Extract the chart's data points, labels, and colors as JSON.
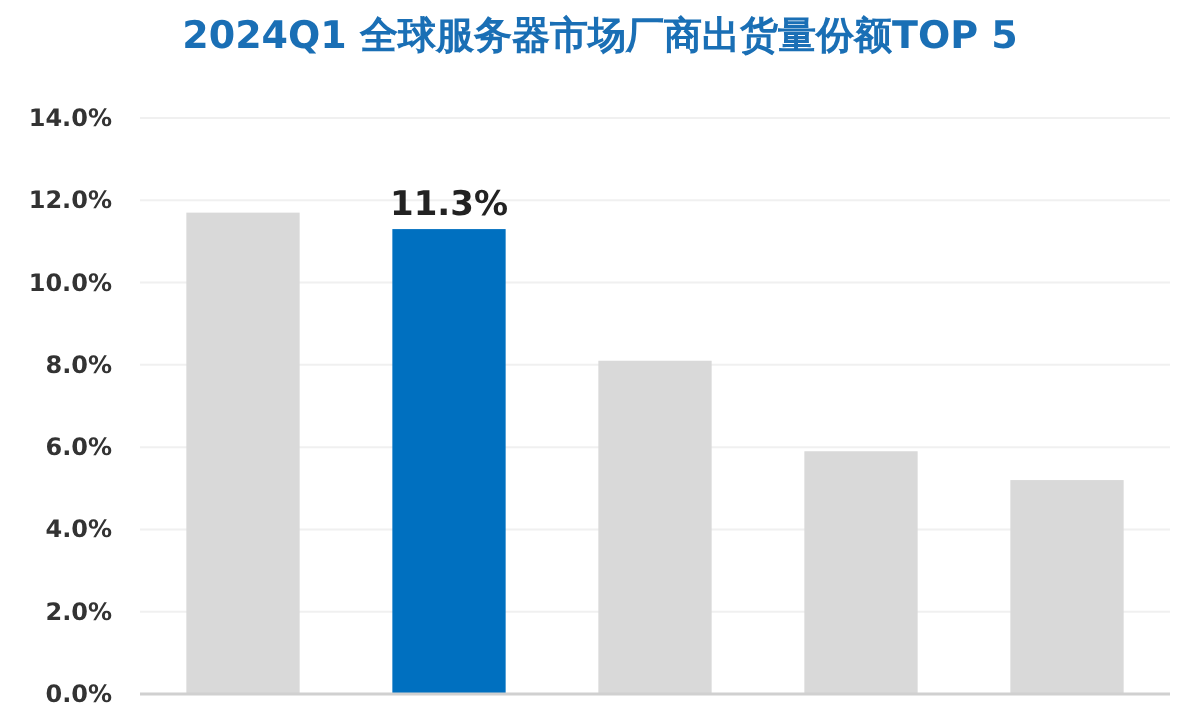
{
  "chart_data": {
    "type": "bar",
    "title": "2024Q1 全球服务器市场厂商出货量份额TOP 5",
    "categories": [
      null,
      null,
      null,
      null,
      null
    ],
    "values": [
      11.7,
      11.3,
      8.1,
      5.9,
      5.2
    ],
    "colors": [
      "#d9d9d9",
      "#0070c0",
      "#d9d9d9",
      "#d9d9d9",
      "#d9d9d9"
    ],
    "value_labels": [
      null,
      "11.3%",
      null,
      null,
      null
    ],
    "ylim": [
      0,
      14
    ],
    "yticks": [
      {
        "value": 0,
        "label": "0.0%"
      },
      {
        "value": 2,
        "label": "2.0%"
      },
      {
        "value": 4,
        "label": "4.0%"
      },
      {
        "value": 6,
        "label": "6.0%"
      },
      {
        "value": 8,
        "label": "8.0%"
      },
      {
        "value": 10,
        "label": "10.0%"
      },
      {
        "value": 12,
        "label": "12.0%"
      },
      {
        "value": 14,
        "label": "14.0%"
      }
    ],
    "grid": "y"
  }
}
